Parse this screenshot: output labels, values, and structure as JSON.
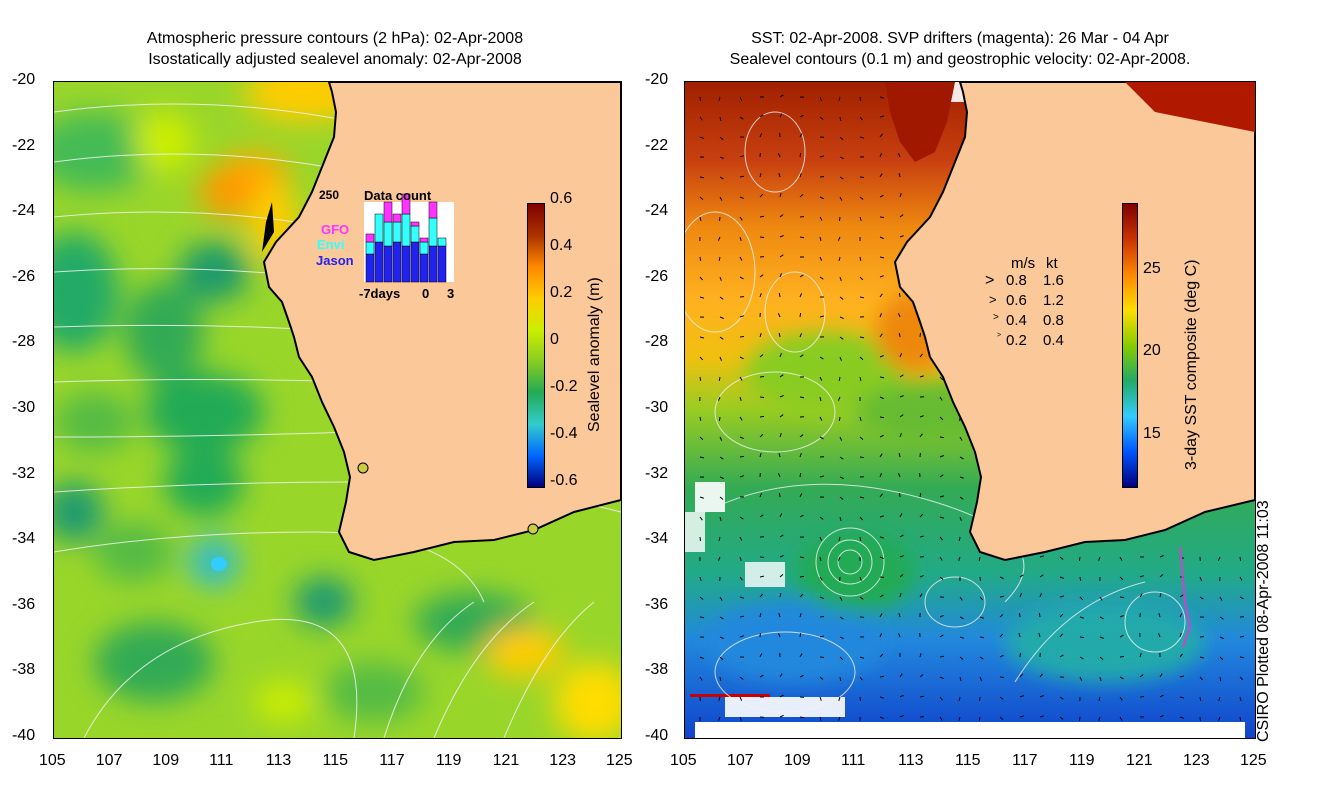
{
  "left": {
    "title_line1": "Atmospheric pressure contours (2 hPa): 02-Apr-2008",
    "title_line2": "Isostatically adjusted sealevel anomaly: 02-Apr-2008",
    "colorbar": {
      "label": "Sealevel anomaly (m)",
      "ticks": [
        "0.6",
        "0.4",
        "0.2",
        "0",
        "-0.2",
        "-0.4",
        "-0.6"
      ]
    },
    "inset": {
      "title": "Data count",
      "ymax": "250",
      "legend": [
        "GFO",
        "Envi",
        "Jason"
      ],
      "legend_colors": [
        "#ff33ff",
        "#33ffff",
        "#2222ee"
      ],
      "xlabels": [
        "-7days",
        "0",
        "3"
      ],
      "bars": [
        {
          "jason": 0.35,
          "envi": 0.15,
          "gfo": 0.1
        },
        {
          "jason": 0.5,
          "envi": 0.35,
          "gfo": 0.0
        },
        {
          "jason": 0.45,
          "envi": 0.3,
          "gfo": 0.25
        },
        {
          "jason": 0.5,
          "envi": 0.25,
          "gfo": 0.1
        },
        {
          "jason": 0.45,
          "envi": 0.4,
          "gfo": 0.25
        },
        {
          "jason": 0.5,
          "envi": 0.2,
          "gfo": 0.05
        },
        {
          "jason": 0.35,
          "envi": 0.15,
          "gfo": 0.05
        },
        {
          "jason": 0.45,
          "envi": 0.35,
          "gfo": 0.2
        },
        {
          "jason": 0.45,
          "envi": 0.1,
          "gfo": 0.0
        }
      ]
    }
  },
  "right": {
    "title_line1": "SST: 02-Apr-2008. SVP drifters (magenta): 26 Mar - 04 Apr",
    "title_line2": "Sealevel contours (0.1 m) and geostrophic velocity: 02-Apr-2008.",
    "colorbar": {
      "label": "3-day SST composite (deg C)",
      "ticks": [
        "25",
        "20",
        "15"
      ]
    },
    "velocity_legend": {
      "header_ms": "m/s",
      "header_kt": "kt",
      "rows": [
        {
          "ms": "0.8",
          "kt": "1.6"
        },
        {
          "ms": "0.6",
          "kt": "1.2"
        },
        {
          "ms": "0.4",
          "kt": "0.8"
        },
        {
          "ms": "0.2",
          "kt": "0.4"
        }
      ]
    },
    "credit": "CSIRO Plotted 08-Apr-2008 11:03"
  },
  "axes": {
    "y_ticks": [
      "-20",
      "-22",
      "-24",
      "-26",
      "-28",
      "-30",
      "-32",
      "-34",
      "-36",
      "-38",
      "-40"
    ],
    "x_ticks": [
      "105",
      "107",
      "109",
      "111",
      "113",
      "115",
      "117",
      "119",
      "121",
      "123",
      "125"
    ]
  },
  "colors": {
    "land": "#fbc89a",
    "sla_ramp": [
      "#000080",
      "#0066ff",
      "#33cccc",
      "#22aa55",
      "#88cc22",
      "#ccee00",
      "#ffcc00",
      "#ff8800",
      "#aa3300",
      "#800000"
    ],
    "sst_ramp": [
      "#000080",
      "#0055ff",
      "#33ccff",
      "#22aa66",
      "#88cc00",
      "#ffdd00",
      "#ff8800",
      "#cc3300",
      "#800000"
    ]
  }
}
